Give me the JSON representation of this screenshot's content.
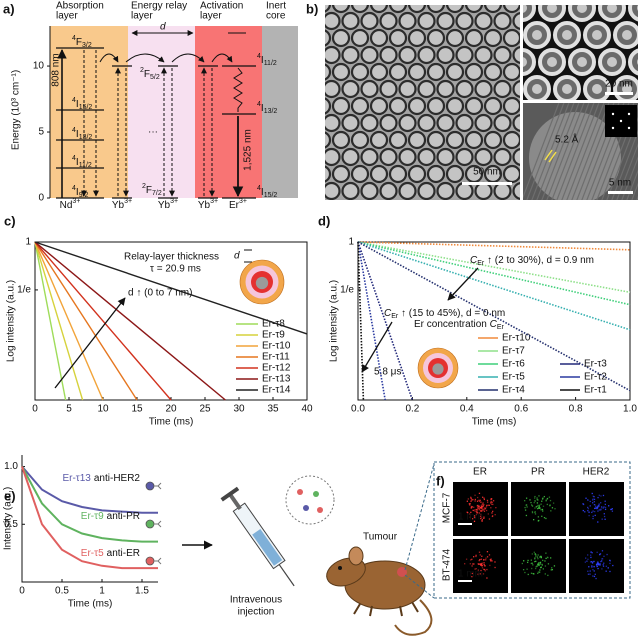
{
  "panels": {
    "a": {
      "label": "a)",
      "layers": [
        [
          "Absorption",
          "layer"
        ],
        [
          "Energy relay",
          "layer"
        ],
        [
          "Activation",
          "layer"
        ],
        [
          "Inert",
          "core"
        ]
      ],
      "ylabel": "Energy (10³ cm⁻¹)",
      "ylim": [
        0,
        14.4
      ],
      "yticks": [
        0,
        5,
        10
      ],
      "spacing": "d",
      "excitation": "808 nm",
      "emission": "1,525 nm",
      "nd_levels": [
        {
          "sup": "4",
          "main": "F",
          "sub": "3/2"
        },
        {
          "sup": "4",
          "main": "I",
          "sub": "15/2"
        },
        {
          "sup": "4",
          "main": "I",
          "sub": "13/2"
        },
        {
          "sup": "4",
          "main": "I",
          "sub": "11/2"
        },
        {
          "sup": "4",
          "main": "I",
          "sub": "9/2"
        }
      ],
      "yb_levels": [
        {
          "sup": "2",
          "main": "F",
          "sub": "5/2"
        },
        {
          "sup": "2",
          "main": "F",
          "sub": "7/2"
        }
      ],
      "er_levels": [
        {
          "sup": "4",
          "main": "I",
          "sub": "11/2"
        },
        {
          "sup": "4",
          "main": "I",
          "sub": "13/2"
        },
        {
          "sup": "4",
          "main": "I",
          "sub": "15/2"
        }
      ],
      "ellipsis": "···",
      "ions": [
        {
          "main": "Nd",
          "sup": "3+"
        },
        {
          "main": "Yb",
          "sup": "3+"
        },
        {
          "main": "Yb",
          "sup": "3+"
        },
        {
          "main": "Yb",
          "sup": "3+"
        },
        {
          "main": "Er",
          "sup": "3+"
        }
      ]
    },
    "b": {
      "label": "b)",
      "scale_bars": [
        "50 nm",
        "20 nm",
        "5 nm"
      ],
      "lattice_spacing": "5.2 Å"
    },
    "e_scene": {
      "injection": [
        "Intravenous",
        "injection"
      ],
      "target": "Tumour"
    },
    "f": {
      "label": "f)",
      "columns": [
        "ER",
        "PR",
        "HER2"
      ],
      "rows": [
        "MCF-7",
        "BT-474"
      ],
      "scale_bar": "1 mm"
    }
  },
  "chart_data": [
    {
      "type": "line",
      "panel_label": "c)",
      "xlabel": "Time (ms)",
      "ylabel": "Log intensity (a.u.)",
      "xlim": [
        0,
        40
      ],
      "xticks": [
        0,
        5,
        10,
        15,
        20,
        25,
        30,
        35,
        40
      ],
      "ylim": [
        0.037,
        1
      ],
      "yticks": [
        1,
        {
          "value": 0.3679,
          "label": "1/e"
        }
      ],
      "log_y": true,
      "legend": "lower right",
      "annotations": {
        "inset_title": "Relay-layer thickness",
        "lifetime": "τ = 20.9 ms",
        "inset_symbol": "d",
        "trend": "d ↑ (0 to 7 nm)"
      },
      "series": [
        {
          "name": "Er-τ8",
          "color": "#9fdc5a",
          "x": [
            0,
            4.5
          ],
          "values": [
            1,
            0.037
          ]
        },
        {
          "name": "Er-τ9",
          "color": "#d6d23c",
          "x": [
            0,
            7
          ],
          "values": [
            1,
            0.037
          ]
        },
        {
          "name": "Er-τ10",
          "color": "#f2a43a",
          "x": [
            0,
            10
          ],
          "values": [
            1,
            0.037
          ]
        },
        {
          "name": "Er-τ11",
          "color": "#e5761f",
          "x": [
            0,
            15
          ],
          "values": [
            1,
            0.037
          ]
        },
        {
          "name": "Er-τ12",
          "color": "#d2321e",
          "x": [
            0,
            20
          ],
          "values": [
            1,
            0.037
          ]
        },
        {
          "name": "Er-τ13",
          "color": "#8c1717",
          "x": [
            0,
            28
          ],
          "values": [
            1,
            0.037
          ]
        },
        {
          "name": "Er-τ14",
          "color": "#222222",
          "x": [
            0,
            40
          ],
          "values": [
            1,
            0.147
          ]
        }
      ]
    },
    {
      "type": "line",
      "panel_label": "d)",
      "xlabel": "Time (ms)",
      "ylabel": "Log intensity (a.u.)",
      "xlim": [
        0,
        1
      ],
      "xticks": [
        {
          "value": 0,
          "label": "0.0"
        },
        0.2,
        0.4,
        0.6,
        0.8,
        {
          "value": 1,
          "label": "1.0"
        }
      ],
      "ylim": [
        0.037,
        1
      ],
      "yticks": [
        1,
        {
          "value": 0.3679,
          "label": "1/e"
        }
      ],
      "log_y": true,
      "legend": "lower right",
      "annotations": {
        "legend_title": {
          "text": "Er concentration ",
          "symbol": "C",
          "sub": "Er"
        },
        "trend_relay": {
          "symbol": "C",
          "sub": "Er",
          "text": " ↑ (2 to 30%), d = 0.9 nm"
        },
        "trend_core": {
          "symbol": "C",
          "sub": "Er",
          "text": " ↑ (15 to 45%), d = 0 nm"
        },
        "fastest": "5.8 μs"
      },
      "series": [
        {
          "name": "Er-τ10",
          "color": "#f08a3c",
          "x": [
            0,
            1
          ],
          "values": [
            1,
            0.85
          ]
        },
        {
          "name": "Er-τ7",
          "color": "#8fe08a",
          "x": [
            0,
            1
          ],
          "values": [
            1,
            0.35
          ]
        },
        {
          "name": "Er-τ6",
          "color": "#3fcf7a",
          "x": [
            0,
            1
          ],
          "values": [
            1,
            0.27
          ]
        },
        {
          "name": "Er-τ5",
          "color": "#36b0b0",
          "x": [
            0,
            1
          ],
          "values": [
            1,
            0.16
          ]
        },
        {
          "name": "Er-τ4",
          "color": "#24306e",
          "x": [
            0,
            1
          ],
          "values": [
            1,
            0.045
          ]
        },
        {
          "name": "Er-τ3",
          "color": "#22287a",
          "x": [
            0,
            0.2
          ],
          "values": [
            1,
            0.037
          ]
        },
        {
          "name": "Er-τ2",
          "color": "#2a3aa0",
          "x": [
            0,
            0.1
          ],
          "values": [
            1,
            0.037
          ]
        },
        {
          "name": "Er-τ1",
          "color": "#111111",
          "x": [
            0,
            0.02
          ],
          "values": [
            1,
            0.037
          ]
        }
      ]
    },
    {
      "type": "line",
      "panel_label": "e)",
      "xlabel": "Time (ms)",
      "ylabel": "Intensity (a.u.)",
      "xlim": [
        0,
        1.7
      ],
      "xticks": [
        0,
        0.5,
        1,
        1.5
      ],
      "ylim": [
        0,
        1.1
      ],
      "yticks": [
        0.5,
        {
          "value": 1,
          "label": "1.0"
        }
      ],
      "log_y": false,
      "x": [
        0,
        0.25,
        0.5,
        0.75,
        1,
        1.25,
        1.5,
        1.7
      ],
      "series": [
        {
          "name": "Er-τ13",
          "probe": "anti-HER2",
          "color": "#5a5aa8",
          "values": [
            1,
            0.8,
            0.7,
            0.65,
            0.62,
            0.61,
            0.6,
            0.6
          ]
        },
        {
          "name": "Er-τ9",
          "probe": "anti-PR",
          "color": "#5fb35f",
          "values": [
            1,
            0.68,
            0.5,
            0.42,
            0.38,
            0.36,
            0.35,
            0.35
          ]
        },
        {
          "name": "Er-τ5",
          "probe": "anti-ER",
          "color": "#e06060",
          "values": [
            1,
            0.5,
            0.28,
            0.18,
            0.14,
            0.12,
            0.12,
            0.12
          ]
        }
      ]
    }
  ]
}
